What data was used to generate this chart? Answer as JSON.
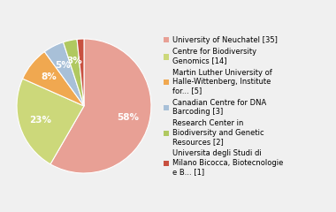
{
  "labels": [
    "University of Neuchatel [35]",
    "Centre for Biodiversity\nGenomics [14]",
    "Martin Luther University of\nHalle-Wittenberg, Institute\nfor... [5]",
    "Canadian Centre for DNA\nBarcoding [3]",
    "Research Center in\nBiodiversity and Genetic\nResources [2]",
    "Universita degli Studi di\nMilano Bicocca, Biotecnologie\ne B... [1]"
  ],
  "values": [
    35,
    14,
    5,
    3,
    2,
    1
  ],
  "colors": [
    "#e8a095",
    "#ccd87a",
    "#f0a850",
    "#a8c0d8",
    "#b0c860",
    "#c85040"
  ],
  "pct_labels": [
    "58%",
    "23%",
    "8%",
    "5%",
    "3%",
    ""
  ],
  "startangle": 90,
  "background_color": "#f0f0f0",
  "legend_fontsize": 6.0,
  "pct_fontsize": 7.5
}
